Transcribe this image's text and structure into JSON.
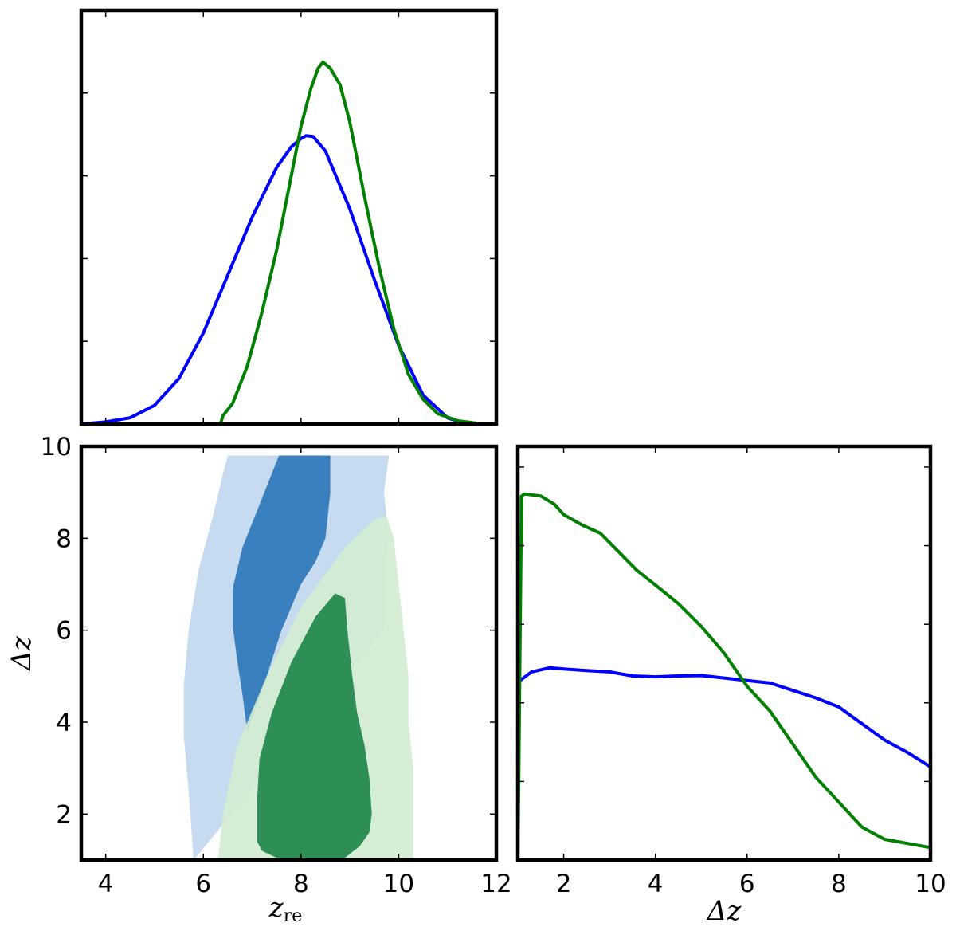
{
  "chart_data": [
    {
      "panel": "top-left",
      "type": "line",
      "xlim": [
        3.5,
        12
      ],
      "ylim": [
        0,
        1
      ],
      "y_ticks_unlabeled": true,
      "series": [
        {
          "color": "#0000ff",
          "points": [
            [
              3.5,
              0.0
            ],
            [
              4.0,
              0.005
            ],
            [
              4.5,
              0.015
            ],
            [
              5.0,
              0.045
            ],
            [
              5.5,
              0.11
            ],
            [
              6.0,
              0.22
            ],
            [
              6.5,
              0.36
            ],
            [
              7.0,
              0.5
            ],
            [
              7.5,
              0.62
            ],
            [
              7.8,
              0.67
            ],
            [
              8.0,
              0.69
            ],
            [
              8.1,
              0.697
            ],
            [
              8.25,
              0.695
            ],
            [
              8.5,
              0.66
            ],
            [
              9.0,
              0.52
            ],
            [
              9.5,
              0.35
            ],
            [
              10.0,
              0.19
            ],
            [
              10.5,
              0.07
            ],
            [
              11.0,
              0.015
            ],
            [
              11.3,
              0.003
            ]
          ]
        },
        {
          "color": "#008000",
          "points": [
            [
              6.35,
              0.0
            ],
            [
              6.4,
              0.02
            ],
            [
              6.6,
              0.05
            ],
            [
              6.9,
              0.14
            ],
            [
              7.2,
              0.27
            ],
            [
              7.5,
              0.42
            ],
            [
              7.8,
              0.6
            ],
            [
              8.0,
              0.72
            ],
            [
              8.2,
              0.81
            ],
            [
              8.35,
              0.86
            ],
            [
              8.45,
              0.875
            ],
            [
              8.6,
              0.86
            ],
            [
              8.8,
              0.82
            ],
            [
              9.0,
              0.73
            ],
            [
              9.3,
              0.55
            ],
            [
              9.6,
              0.38
            ],
            [
              9.9,
              0.23
            ],
            [
              10.2,
              0.12
            ],
            [
              10.5,
              0.06
            ],
            [
              10.8,
              0.025
            ],
            [
              11.2,
              0.008
            ],
            [
              11.6,
              0.002
            ]
          ]
        }
      ]
    },
    {
      "panel": "bottom-left",
      "type": "area",
      "xlabel": "z",
      "xlabel_sub": "re",
      "ylabel": "Δz",
      "xlim": [
        3.5,
        12
      ],
      "ylim": [
        1,
        10
      ],
      "x_ticks": [
        4,
        6,
        8,
        10,
        12
      ],
      "y_ticks": [
        2,
        4,
        6,
        8,
        10
      ],
      "regions": [
        {
          "name": "blue-95",
          "color": "#c6dbef",
          "points": [
            [
              5.8,
              1.0
            ],
            [
              5.7,
              2.5
            ],
            [
              5.6,
              3.7
            ],
            [
              5.6,
              4.8
            ],
            [
              5.7,
              6.0
            ],
            [
              5.9,
              7.3
            ],
            [
              6.2,
              8.5
            ],
            [
              6.4,
              9.4
            ],
            [
              6.5,
              9.8
            ],
            [
              9.8,
              9.8
            ],
            [
              9.7,
              9.0
            ],
            [
              9.8,
              8.0
            ],
            [
              9.7,
              7.0
            ],
            [
              9.7,
              6.0
            ]
          ]
        },
        {
          "name": "blue-68",
          "color": "#3a80bf",
          "points": [
            [
              6.9,
              3.8
            ],
            [
              6.8,
              4.6
            ],
            [
              6.7,
              5.3
            ],
            [
              6.6,
              6.1
            ],
            [
              6.6,
              6.9
            ],
            [
              6.8,
              7.8
            ],
            [
              7.1,
              8.6
            ],
            [
              7.4,
              9.4
            ],
            [
              7.55,
              9.8
            ],
            [
              8.6,
              9.8
            ],
            [
              8.6,
              9.0
            ],
            [
              8.5,
              8.0
            ],
            [
              8.3,
              7.5
            ],
            [
              8.0,
              7.0
            ],
            [
              7.6,
              6.0
            ],
            [
              7.3,
              5.0
            ]
          ]
        },
        {
          "name": "green-95",
          "color": "#d1ecd0",
          "points": [
            [
              6.3,
              1.0
            ],
            [
              6.4,
              2.0
            ],
            [
              6.7,
              3.5
            ],
            [
              7.3,
              5.0
            ],
            [
              8.0,
              6.5
            ],
            [
              8.9,
              7.8
            ],
            [
              9.5,
              8.4
            ],
            [
              9.75,
              8.5
            ],
            [
              9.9,
              8.0
            ],
            [
              10.0,
              7.0
            ],
            [
              10.1,
              6.0
            ],
            [
              10.2,
              5.0
            ],
            [
              10.2,
              4.0
            ],
            [
              10.3,
              3.0
            ],
            [
              10.3,
              2.0
            ],
            [
              10.3,
              1.0
            ]
          ]
        },
        {
          "name": "green-68",
          "color": "#2e8f56",
          "points": [
            [
              7.1,
              1.4
            ],
            [
              7.1,
              2.3
            ],
            [
              7.15,
              3.2
            ],
            [
              7.4,
              4.2
            ],
            [
              7.8,
              5.3
            ],
            [
              8.3,
              6.3
            ],
            [
              8.7,
              6.8
            ],
            [
              8.9,
              6.7
            ],
            [
              8.95,
              6.0
            ],
            [
              9.05,
              5.0
            ],
            [
              9.15,
              4.2
            ],
            [
              9.3,
              3.5
            ],
            [
              9.4,
              2.8
            ],
            [
              9.45,
              2.0
            ],
            [
              9.4,
              1.6
            ],
            [
              9.2,
              1.3
            ],
            [
              8.9,
              1.05
            ],
            [
              7.5,
              1.05
            ],
            [
              7.2,
              1.2
            ]
          ]
        }
      ]
    },
    {
      "panel": "bottom-right",
      "type": "line",
      "xlabel": "Δz",
      "xlim": [
        1,
        10
      ],
      "ylim": [
        0,
        1
      ],
      "x_ticks": [
        2,
        4,
        6,
        8,
        10
      ],
      "y_ticks_unlabeled": true,
      "series": [
        {
          "color": "#0000ff",
          "points": [
            [
              1.0,
              0.43
            ],
            [
              1.3,
              0.455
            ],
            [
              1.7,
              0.465
            ],
            [
              2.0,
              0.462
            ],
            [
              2.5,
              0.458
            ],
            [
              3.0,
              0.455
            ],
            [
              3.5,
              0.445
            ],
            [
              4.0,
              0.443
            ],
            [
              4.5,
              0.445
            ],
            [
              5.0,
              0.446
            ],
            [
              5.5,
              0.44
            ],
            [
              6.0,
              0.434
            ],
            [
              6.5,
              0.428
            ],
            [
              7.0,
              0.41
            ],
            [
              7.5,
              0.392
            ],
            [
              8.0,
              0.37
            ],
            [
              8.5,
              0.33
            ],
            [
              9.0,
              0.29
            ],
            [
              9.5,
              0.26
            ],
            [
              10.0,
              0.225
            ]
          ]
        },
        {
          "color": "#008000",
          "points": [
            [
              1.0,
              0.0
            ],
            [
              1.02,
              0.2
            ],
            [
              1.05,
              0.55
            ],
            [
              1.08,
              0.88
            ],
            [
              1.15,
              0.885
            ],
            [
              1.5,
              0.88
            ],
            [
              1.8,
              0.86
            ],
            [
              2.0,
              0.835
            ],
            [
              2.4,
              0.81
            ],
            [
              2.8,
              0.79
            ],
            [
              3.2,
              0.745
            ],
            [
              3.6,
              0.7
            ],
            [
              4.0,
              0.665
            ],
            [
              4.5,
              0.62
            ],
            [
              5.0,
              0.565
            ],
            [
              5.5,
              0.5
            ],
            [
              6.0,
              0.42
            ],
            [
              6.5,
              0.36
            ],
            [
              7.0,
              0.28
            ],
            [
              7.5,
              0.2
            ],
            [
              8.0,
              0.14
            ],
            [
              8.5,
              0.08
            ],
            [
              9.0,
              0.05
            ],
            [
              9.5,
              0.04
            ],
            [
              10.0,
              0.03
            ]
          ]
        }
      ]
    }
  ]
}
